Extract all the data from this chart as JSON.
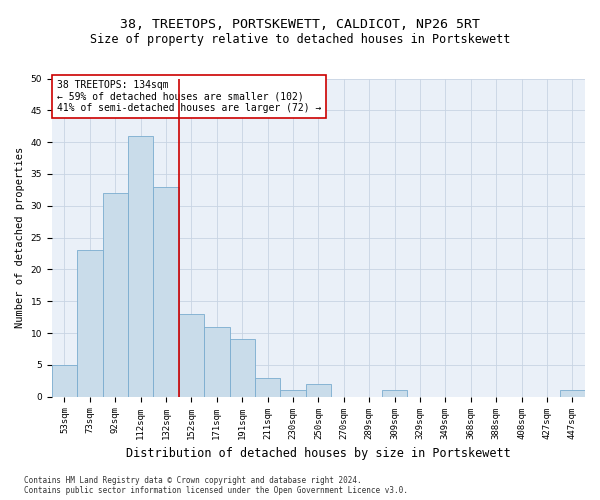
{
  "title": "38, TREETOPS, PORTSKEWETT, CALDICOT, NP26 5RT",
  "subtitle": "Size of property relative to detached houses in Portskewett",
  "xlabel": "Distribution of detached houses by size in Portskewett",
  "ylabel": "Number of detached properties",
  "categories": [
    "53sqm",
    "73sqm",
    "92sqm",
    "112sqm",
    "132sqm",
    "152sqm",
    "171sqm",
    "191sqm",
    "211sqm",
    "230sqm",
    "250sqm",
    "270sqm",
    "289sqm",
    "309sqm",
    "329sqm",
    "349sqm",
    "368sqm",
    "388sqm",
    "408sqm",
    "427sqm",
    "447sqm"
  ],
  "values": [
    5,
    23,
    32,
    41,
    33,
    13,
    11,
    9,
    3,
    1,
    2,
    0,
    0,
    1,
    0,
    0,
    0,
    0,
    0,
    0,
    1
  ],
  "bar_color": "#c9dcea",
  "bar_edge_color": "#7aaccf",
  "grid_color": "#c8d4e3",
  "background_color": "#eaf0f8",
  "vline_x": 4.5,
  "vline_color": "#cc0000",
  "annotation_text": "38 TREETOPS: 134sqm\n← 59% of detached houses are smaller (102)\n41% of semi-detached houses are larger (72) →",
  "annotation_box_color": "#ffffff",
  "annotation_box_edge": "#cc0000",
  "ylim": [
    0,
    50
  ],
  "yticks": [
    0,
    5,
    10,
    15,
    20,
    25,
    30,
    35,
    40,
    45,
    50
  ],
  "footnote": "Contains HM Land Registry data © Crown copyright and database right 2024.\nContains public sector information licensed under the Open Government Licence v3.0.",
  "title_fontsize": 9.5,
  "subtitle_fontsize": 8.5,
  "xlabel_fontsize": 8.5,
  "ylabel_fontsize": 7.5,
  "tick_fontsize": 6.5,
  "annotation_fontsize": 7,
  "footnote_fontsize": 5.5
}
